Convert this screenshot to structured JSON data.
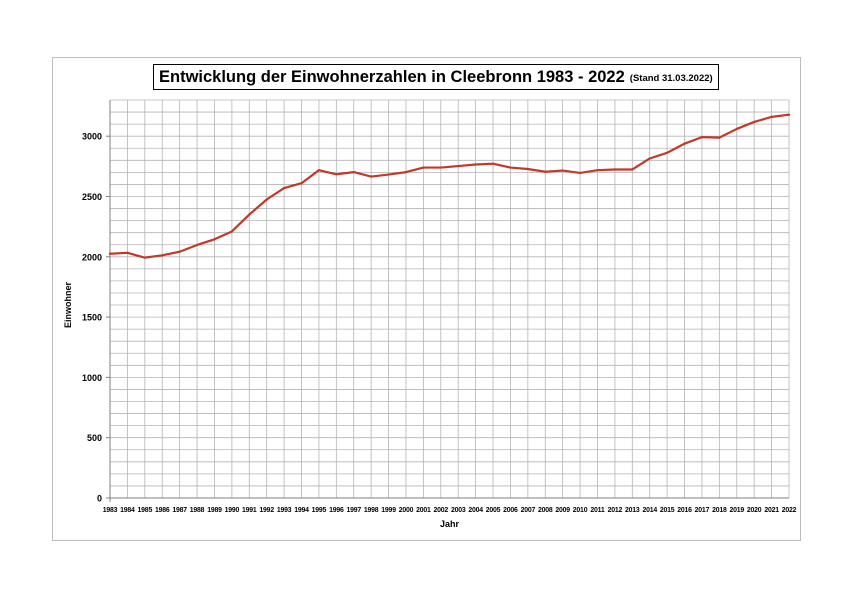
{
  "chart_data": {
    "type": "line",
    "title": "Entwicklung der Einwohnerzahlen in Cleebronn 1983 - 2022",
    "subtitle": "(Stand 31.03.2022)",
    "xlabel": "Jahr",
    "ylabel": "Einwohner",
    "ylim": [
      0,
      3300
    ],
    "yticks": [
      0,
      500,
      1000,
      1500,
      2000,
      2500,
      3000
    ],
    "grid": true,
    "legend": "none",
    "line_color": "#c0392b",
    "categories": [
      "1983",
      "1984",
      "1985",
      "1986",
      "1987",
      "1988",
      "1989",
      "1990",
      "1991",
      "1992",
      "1993",
      "1994",
      "1995",
      "1996",
      "1997",
      "1998",
      "1999",
      "2000",
      "2001",
      "2002",
      "2003",
      "2004",
      "2005",
      "2006",
      "2007",
      "2008",
      "2009",
      "2010",
      "2011",
      "2012",
      "2013",
      "2014",
      "2015",
      "2016",
      "2017",
      "2018",
      "2019",
      "2020",
      "2021",
      "2022"
    ],
    "series": [
      {
        "values": [
          2025,
          2033,
          1993,
          2012,
          2042,
          2098,
          2145,
          2210,
          2350,
          2475,
          2570,
          2610,
          2718,
          2684,
          2702,
          2665,
          2682,
          2702,
          2740,
          2740,
          2752,
          2765,
          2772,
          2740,
          2728,
          2705,
          2715,
          2695,
          2718,
          2724,
          2724,
          2815,
          2862,
          2938,
          2992,
          2988,
          3060,
          3118,
          3160,
          3178
        ]
      }
    ]
  }
}
